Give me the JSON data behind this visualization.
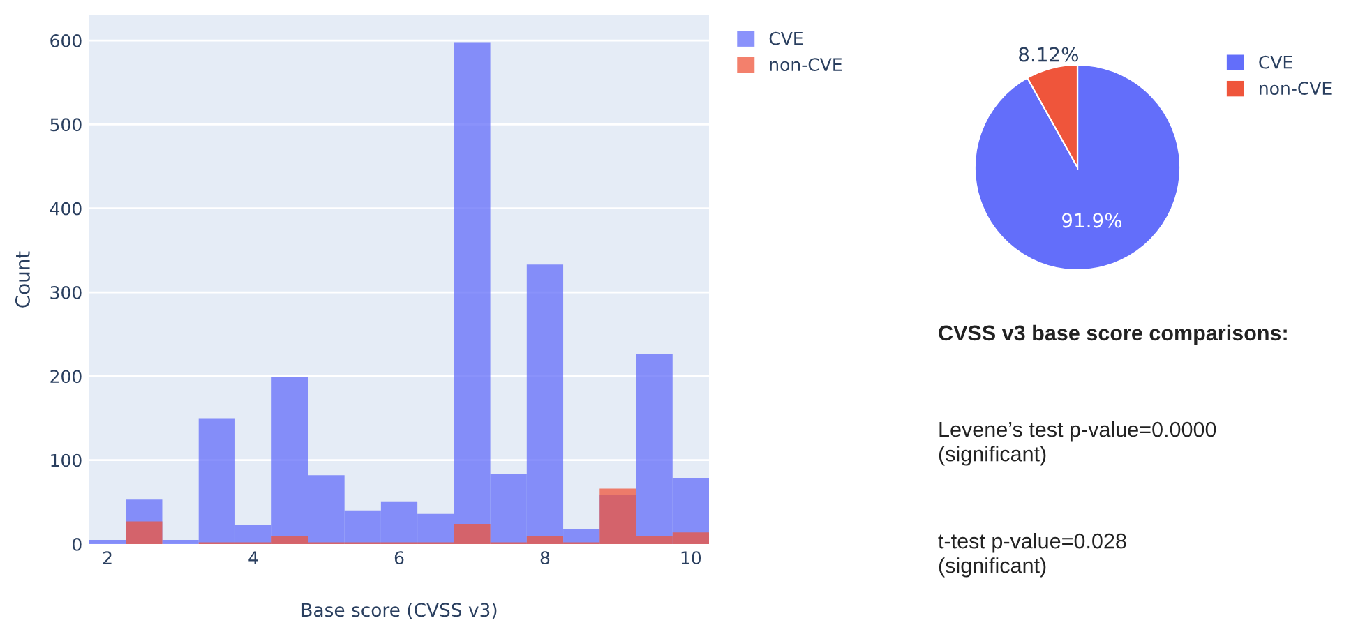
{
  "chart_data": [
    {
      "type": "histogram",
      "xlabel": "Base score (CVSS v3)",
      "ylabel": "Count",
      "bins": [
        1.75,
        2.25,
        2.75,
        3.25,
        3.75,
        4.25,
        4.75,
        5.25,
        5.75,
        6.25,
        6.75,
        7.25,
        7.75,
        8.25,
        8.75,
        9.25,
        9.75,
        10.25
      ],
      "series": [
        {
          "name": "CVE",
          "color": "#636efa",
          "values": [
            5,
            53,
            5,
            150,
            23,
            199,
            82,
            40,
            51,
            36,
            598,
            84,
            333,
            18,
            59,
            226,
            79
          ]
        },
        {
          "name": "non-CVE",
          "color": "#ef553b",
          "values": [
            0,
            27,
            0,
            2,
            2,
            10,
            2,
            2,
            2,
            2,
            24,
            2,
            10,
            2,
            66,
            10,
            14
          ]
        }
      ],
      "xlim": [
        1.75,
        10.25
      ],
      "xticks": [
        2,
        4,
        6,
        8,
        10
      ],
      "ylim": [
        0,
        630
      ],
      "yticks": [
        0,
        100,
        200,
        300,
        400,
        500,
        600
      ],
      "grid": "y",
      "legend": "top right"
    },
    {
      "type": "pie",
      "categories": [
        "CVE",
        "non-CVE"
      ],
      "values": [
        91.9,
        8.12
      ],
      "colors": [
        "#636efa",
        "#ef553b"
      ],
      "value_labels": [
        "91.9%",
        "8.12%"
      ],
      "legend": "top right"
    },
    {
      "type": "other",
      "title": "CVSS v3 base score comparisons:",
      "annotations": [
        "Levene’s test p-value=0.0000\n(significant)",
        "t-test p-value=0.028\n(significant)"
      ]
    }
  ]
}
